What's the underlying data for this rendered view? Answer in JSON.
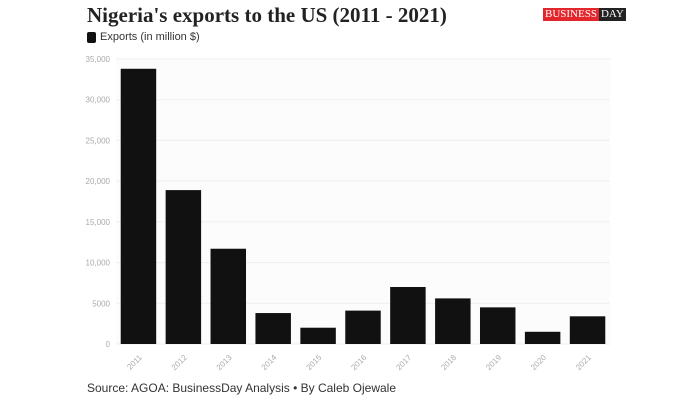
{
  "chart_data": {
    "type": "bar",
    "title": "Nigeria's exports to the US (2011 - 2021)",
    "legend": [
      {
        "name": "Exports (in million $)",
        "color": "#111111"
      }
    ],
    "legend_placement": "top-left",
    "categories": [
      "2011",
      "2012",
      "2013",
      "2014",
      "2015",
      "2016",
      "2017",
      "2018",
      "2019",
      "2020",
      "2021"
    ],
    "series": [
      {
        "name": "Exports (in million $)",
        "values": [
          33800,
          18900,
          11700,
          3800,
          2000,
          4100,
          7000,
          5600,
          4500,
          1500,
          3400
        ]
      }
    ],
    "ylim": [
      0,
      35000
    ],
    "yticks": [
      0,
      5000,
      10000,
      15000,
      20000,
      25000,
      30000,
      35000
    ],
    "ytick_labels": [
      "0",
      "5000",
      "10,000",
      "15,000",
      "20,000",
      "25,000",
      "30,000",
      "35,000"
    ],
    "grid": true,
    "bar_color": "#111111"
  },
  "logo": {
    "left": "BUSINESS",
    "right": "DAY"
  },
  "source": "Source: AGOA: BusinessDay Analysis • By Caleb Ojewale"
}
